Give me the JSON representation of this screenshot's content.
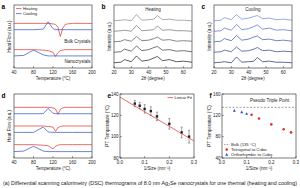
{
  "caption": "(a) Differential scanning calorimetry (DSC) thermograms of 8.0 nm Ag₂Se nanocrystals for one thermal (heating and cooling)",
  "chart_data": [
    {
      "type": "line",
      "panel": "a",
      "x_label": "Temperature (°C)",
      "y_label": "Heat Flow (a.u.)",
      "x": [
        40,
        60,
        80,
        100,
        110,
        120,
        125,
        130,
        135,
        140,
        145,
        150,
        160,
        180,
        200
      ],
      "xlim": [
        40,
        200
      ],
      "xticks": [
        40,
        80,
        120,
        160,
        200
      ],
      "ylim": [
        0,
        12
      ],
      "tick_labels": "x",
      "legend": "upper left",
      "annotations": [
        "Bulk Crystals",
        "Nanocrystals"
      ],
      "series": [
        {
          "name": "Heating",
          "color": "#e0302a",
          "values": [
            8.5,
            8.5,
            8.5,
            8.5,
            8.5,
            8.4,
            8.3,
            7.8,
            6.0,
            7.6,
            8.3,
            8.4,
            8.5,
            8.5,
            8.5
          ]
        },
        {
          "name": "Cooling",
          "color": "#2a4fc8",
          "values": [
            7.3,
            7.3,
            7.3,
            7.4,
            8.8,
            7.5,
            7.3,
            7.3,
            7.3,
            7.3,
            7.3,
            7.3,
            7.3,
            7.3,
            7.3
          ]
        },
        {
          "color": "#e0302a",
          "values": [
            3.5,
            3.5,
            3.5,
            3.4,
            3.3,
            3.0,
            2.2,
            2.9,
            3.3,
            3.4,
            3.5,
            3.5,
            3.5,
            3.5,
            3.5
          ]
        },
        {
          "color": "#2a4fc8",
          "values": [
            2.3,
            2.4,
            3.4,
            2.5,
            2.3,
            2.3,
            2.3,
            2.3,
            2.3,
            2.3,
            2.3,
            2.3,
            2.3,
            2.3,
            2.3
          ]
        }
      ]
    },
    {
      "type": "line",
      "panel": "b",
      "title": "Heating",
      "x_label": "2θ (degree)",
      "y_label": "Intensity (a.u.)",
      "x": [
        20,
        24,
        26,
        30,
        33,
        36,
        40,
        43,
        45,
        48,
        52,
        56,
        60,
        65
      ],
      "xlim": [
        20,
        65
      ],
      "xticks": [
        20,
        30,
        40,
        50,
        60
      ],
      "ylim": [
        0,
        12
      ],
      "tick_labels": "x",
      "series": [
        {
          "color": "#1a1a1a",
          "values": [
            1,
            1.1,
            1.6,
            1.2,
            2.3,
            1.3,
            1.5,
            1.9,
            2.2,
            1.4,
            1.6,
            1.2,
            1.3,
            1.1
          ]
        },
        {
          "color": "#3a3a3a",
          "values": [
            3,
            3.1,
            3.6,
            3.2,
            4.2,
            3.3,
            3.5,
            3.9,
            4.1,
            3.4,
            3.5,
            3.2,
            3.3,
            3.1
          ]
        },
        {
          "color": "#555555",
          "values": [
            5,
            5.1,
            5.4,
            5.1,
            6.0,
            5.2,
            5.3,
            5.6,
            5.9,
            5.3,
            5.4,
            5.1,
            5.2,
            5.1
          ]
        },
        {
          "color": "#707070",
          "values": [
            7,
            7.1,
            7.2,
            7.0,
            8.1,
            7.1,
            7.2,
            7.3,
            8.0,
            7.2,
            7.3,
            7.1,
            7.1,
            7.0
          ]
        },
        {
          "color": "#8a8a8a",
          "values": [
            9,
            9.1,
            9.2,
            9.0,
            10.2,
            9.1,
            9.2,
            9.3,
            10.0,
            9.2,
            9.3,
            9.1,
            9.1,
            9.0
          ]
        }
      ]
    },
    {
      "type": "line",
      "panel": "c",
      "title": "Cooling",
      "x_label": "2θ (degree)",
      "y_label": "Intensity (a.u.)",
      "x": [
        20,
        24,
        26,
        30,
        33,
        36,
        40,
        43,
        45,
        48,
        52,
        56,
        60,
        65
      ],
      "xlim": [
        20,
        65
      ],
      "xticks": [
        20,
        30,
        40,
        50,
        60
      ],
      "ylim": [
        0,
        12
      ],
      "tick_labels": "x",
      "series": [
        {
          "color": "#1a2a6a",
          "values": [
            1,
            1.1,
            1.2,
            1.0,
            2.1,
            1.1,
            1.2,
            1.3,
            2.0,
            1.2,
            1.3,
            1.1,
            1.1,
            1.0
          ]
        },
        {
          "color": "#27408f",
          "values": [
            3,
            3.1,
            3.4,
            3.1,
            4.0,
            3.2,
            3.3,
            3.6,
            3.9,
            3.3,
            3.4,
            3.1,
            3.2,
            3.1
          ]
        },
        {
          "color": "#3355b0",
          "values": [
            5,
            5.1,
            5.6,
            5.2,
            6.2,
            5.3,
            5.5,
            5.9,
            6.1,
            5.4,
            5.5,
            5.2,
            5.3,
            5.1
          ]
        },
        {
          "color": "#4a6cc8",
          "values": [
            7,
            7.1,
            7.6,
            7.2,
            8.3,
            7.3,
            7.5,
            7.9,
            8.2,
            7.4,
            7.6,
            7.2,
            7.3,
            7.1
          ]
        },
        {
          "color": "#6a88d8",
          "values": [
            9,
            9.1,
            9.6,
            9.2,
            10.2,
            9.3,
            9.5,
            9.8,
            10.0,
            9.4,
            9.5,
            9.2,
            9.3,
            9.1
          ]
        }
      ]
    },
    {
      "type": "line",
      "panel": "d",
      "x_label": "Temperature (°C)",
      "y_label": "Heat Flow (a.u.)",
      "x": [
        40,
        60,
        80,
        100,
        110,
        120,
        125,
        130,
        135,
        140,
        145,
        150,
        160,
        180,
        200
      ],
      "xlim": [
        40,
        200
      ],
      "xticks": [
        40,
        80,
        120,
        160,
        200
      ],
      "ylim": [
        0,
        12
      ],
      "tick_labels": "x",
      "series": [
        {
          "color": "#e0302a",
          "values": [
            9.5,
            9.5,
            9.5,
            9.5,
            9.5,
            9.4,
            9.2,
            8.2,
            9.1,
            9.4,
            9.5,
            9.5,
            9.5,
            9.5,
            9.5
          ]
        },
        {
          "color": "#2a4fc8",
          "values": [
            8.3,
            8.3,
            8.3,
            8.3,
            9.3,
            8.4,
            8.3,
            8.3,
            8.3,
            8.3,
            8.3,
            8.3,
            8.3,
            8.3,
            8.3
          ]
        },
        {
          "color": "#e0302a",
          "values": [
            6.0,
            6.0,
            6.0,
            6.0,
            5.9,
            5.8,
            5.0,
            5.7,
            5.9,
            6.0,
            6.0,
            6.0,
            6.0,
            6.0,
            6.0
          ]
        },
        {
          "color": "#2a4fc8",
          "values": [
            4.8,
            4.8,
            4.8,
            5.8,
            4.9,
            4.8,
            4.8,
            4.8,
            4.8,
            4.8,
            4.8,
            4.8,
            4.8,
            4.8,
            4.8
          ]
        },
        {
          "color": "#e0302a",
          "values": [
            2.5,
            2.5,
            2.5,
            2.4,
            2.3,
            1.7,
            2.2,
            2.4,
            2.5,
            2.5,
            2.5,
            2.5,
            2.5,
            2.5,
            2.5
          ]
        },
        {
          "color": "#2a4fc8",
          "values": [
            1.2,
            1.3,
            2.2,
            1.3,
            1.2,
            1.2,
            1.2,
            1.2,
            1.2,
            1.2,
            1.2,
            1.2,
            1.2,
            1.2,
            1.2
          ]
        }
      ]
    },
    {
      "type": "scatter",
      "panel": "e",
      "x_label": "1/Size (nm⁻¹)",
      "y_label": "PT Temperature (°C)",
      "xlim": [
        0,
        0.3
      ],
      "xticks": [
        {
          "value": 0,
          "label": "0.0"
        },
        0.1,
        0.2,
        0.3
      ],
      "ylim": [
        80,
        140
      ],
      "yticks": [
        80,
        100,
        120,
        140
      ],
      "legend": "upper right",
      "series": [
        {
          "type": "scatter",
          "marker": "square",
          "color": "#222222",
          "x": [
            0.06,
            0.08,
            0.1,
            0.125,
            0.15,
            0.2,
            0.25,
            0.28
          ],
          "values": [
            131,
            129,
            126,
            124,
            119,
            112,
            104,
            100
          ],
          "errors": [
            3,
            3,
            4,
            4,
            4,
            5,
            5,
            6
          ]
        },
        {
          "name": "Linear Fit",
          "type": "line",
          "color": "#e0302a",
          "x": [
            0,
            0.3
          ],
          "values": [
            137,
            96
          ]
        }
      ]
    },
    {
      "type": "scatter",
      "panel": "f",
      "x_label": "1/Size (nm⁻¹)",
      "y_label": "PT Temperature (°C)",
      "xlim": [
        0,
        0.3
      ],
      "xticks": [
        {
          "value": 0,
          "label": "0.0"
        },
        0.1,
        0.2,
        0.3
      ],
      "ylim": [
        40,
        160
      ],
      "yticks": [
        40,
        80,
        120,
        160
      ],
      "legend": "lower left",
      "annotations": [
        "Pseudo Triple Point"
      ],
      "series": [
        {
          "name": "Bulk (135 °C)",
          "type": "line",
          "line_style": "dashed",
          "color": "#777777",
          "x": [
            0,
            0.3
          ],
          "values": [
            135,
            135
          ]
        },
        {
          "name": "Tetragonal to Cubic",
          "type": "scatter",
          "marker": "circle",
          "color": "#e0302a",
          "x": [
            0.12,
            0.15,
            0.2,
            0.25,
            0.28
          ],
          "values": [
            121,
            114,
            103,
            94,
            88
          ]
        },
        {
          "name": "Orthorhombic to Cubic",
          "type": "scatter",
          "marker": "triangle",
          "color": "#2a4fc8",
          "x": [
            0.05,
            0.08,
            0.1
          ],
          "values": [
            129,
            126,
            123
          ]
        }
      ]
    }
  ]
}
